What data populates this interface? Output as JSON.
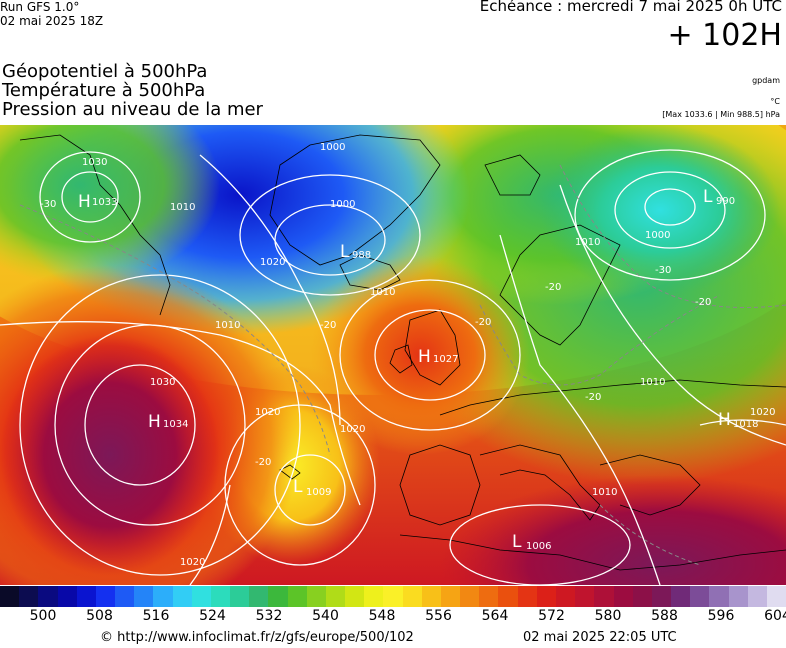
{
  "header": {
    "run_line1": "Run GFS 1.0°",
    "run_line2": "02 mai 2025 18Z",
    "validity": "Echéance : mercredi 7 mai 2025 0h UTC",
    "lead_time": "+ 102H",
    "param1": "Géopotentiel à 500hPa",
    "param2": "Température à 500hPa",
    "param3": "Pression au niveau de la mer",
    "unit1": "gpdam",
    "unit2": "°C",
    "unit3": "[Max 1033.6 | Min 988.5] hPa"
  },
  "pressure_centers": [
    {
      "type": "H",
      "value": "1033"
    },
    {
      "type": "H",
      "value": "1034"
    },
    {
      "type": "H",
      "value": "1027"
    },
    {
      "type": "H",
      "value": "1018"
    },
    {
      "type": "L",
      "value": "988"
    },
    {
      "type": "L",
      "value": "990"
    },
    {
      "type": "L",
      "value": "1009"
    },
    {
      "type": "L",
      "value": "1006"
    }
  ],
  "isobar_labels": [
    "1030",
    "1010",
    "1010",
    "1020",
    "1030",
    "1020",
    "1020",
    "1000",
    "1000",
    "1010",
    "1010",
    "1000",
    "1010",
    "1020",
    "1020",
    "1010"
  ],
  "temperature_labels": [
    "-30",
    "-20",
    "-20",
    "-20",
    "-20",
    "-20",
    "-30",
    "-20"
  ],
  "colorbar": {
    "colors": [
      "#0a0a28",
      "#0c0c50",
      "#0a0a80",
      "#0808a8",
      "#0a14d0",
      "#1430f0",
      "#1e5af5",
      "#2484f8",
      "#2caefa",
      "#32cdf5",
      "#30e0e0",
      "#2cdcbc",
      "#2ccc98",
      "#32b870",
      "#3cb83c",
      "#5cc428",
      "#88d020",
      "#b0dc18",
      "#d2e614",
      "#eef01c",
      "#faf028",
      "#fadc20",
      "#f8c018",
      "#f6a414",
      "#f28812",
      "#ee6c10",
      "#ea500e",
      "#e43414",
      "#dc2018",
      "#ce1822",
      "#c0142e",
      "#ae1038",
      "#9c0c40",
      "#8c1048",
      "#7c1858",
      "#702a78",
      "#7c4c98",
      "#9070b4",
      "#a894cc",
      "#c4b8e0",
      "#e0dcf0"
    ],
    "tick_labels": [
      "500",
      "508",
      "516",
      "524",
      "532",
      "540",
      "548",
      "556",
      "564",
      "572",
      "580",
      "588",
      "596",
      "604"
    ]
  },
  "footer": {
    "url": "© http://www.infoclimat.fr/z/gfs/europe/500/102",
    "generated": "02 mai 2025 22:05 UTC"
  }
}
